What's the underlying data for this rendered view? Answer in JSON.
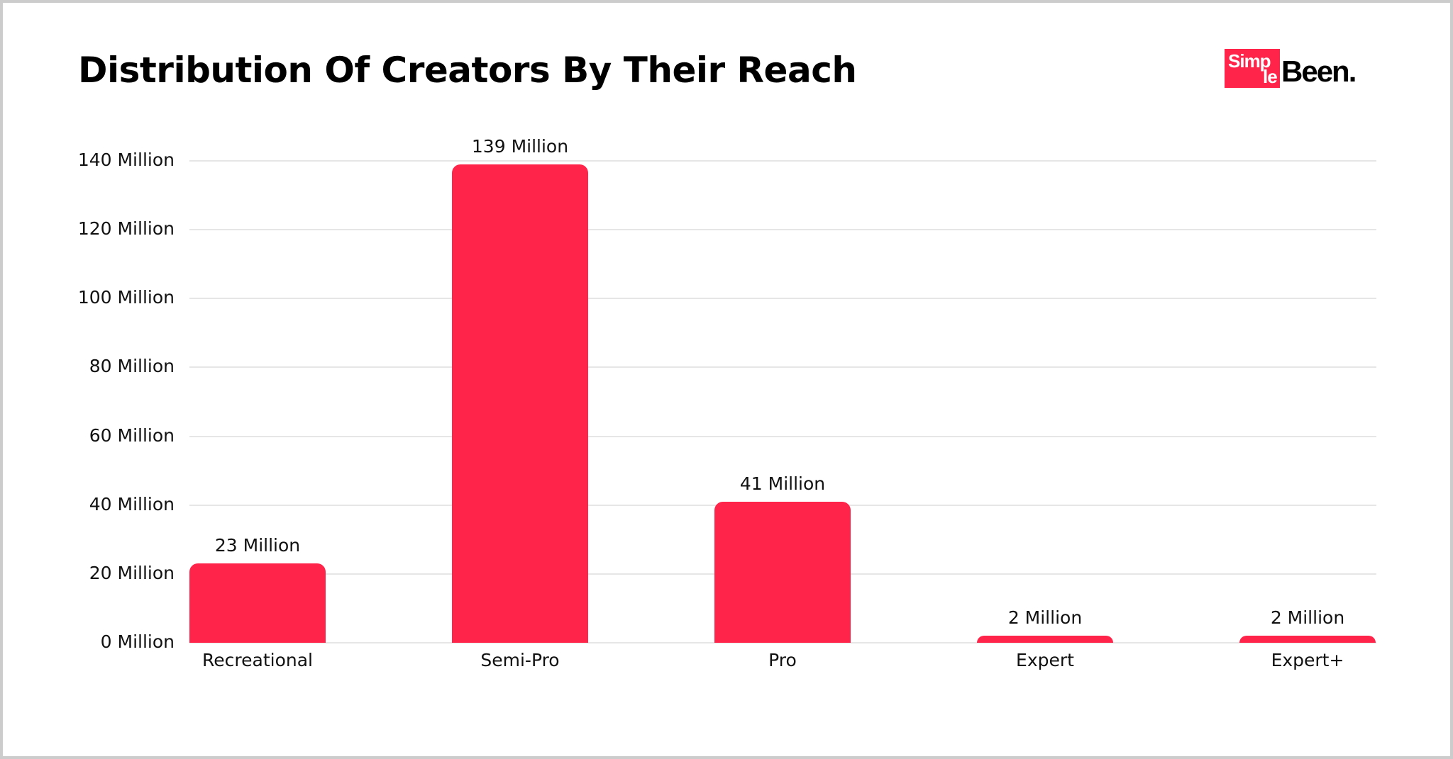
{
  "header": {
    "title": "Distribution Of Creators By Their Reach",
    "logo": {
      "part1": "Simp",
      "part2": "le",
      "part3": "Been."
    }
  },
  "colors": {
    "bar": "#FF2449",
    "grid": "#e6e6e6",
    "border": "#cccccc",
    "text": "#111111"
  },
  "chart_data": {
    "type": "bar",
    "title": "Distribution Of Creators By Their Reach",
    "xlabel": "",
    "ylabel": "",
    "categories": [
      "Recreational",
      "Semi-Pro",
      "Pro",
      "Expert",
      "Expert+"
    ],
    "values": [
      23,
      139,
      41,
      2,
      2
    ],
    "value_unit": "Million",
    "data_labels": [
      "23 Million",
      "139 Million",
      "41 Million",
      "2 Million",
      "2 Million"
    ],
    "ylim": [
      0,
      140
    ],
    "yticks": [
      0,
      20,
      40,
      60,
      80,
      100,
      120,
      140
    ],
    "ytick_labels": [
      "0 Million",
      "20 Million",
      "40 Million",
      "60 Million",
      "80 Million",
      "100 Million",
      "120 Million",
      "140 Million"
    ],
    "grid": true,
    "legend": null
  }
}
